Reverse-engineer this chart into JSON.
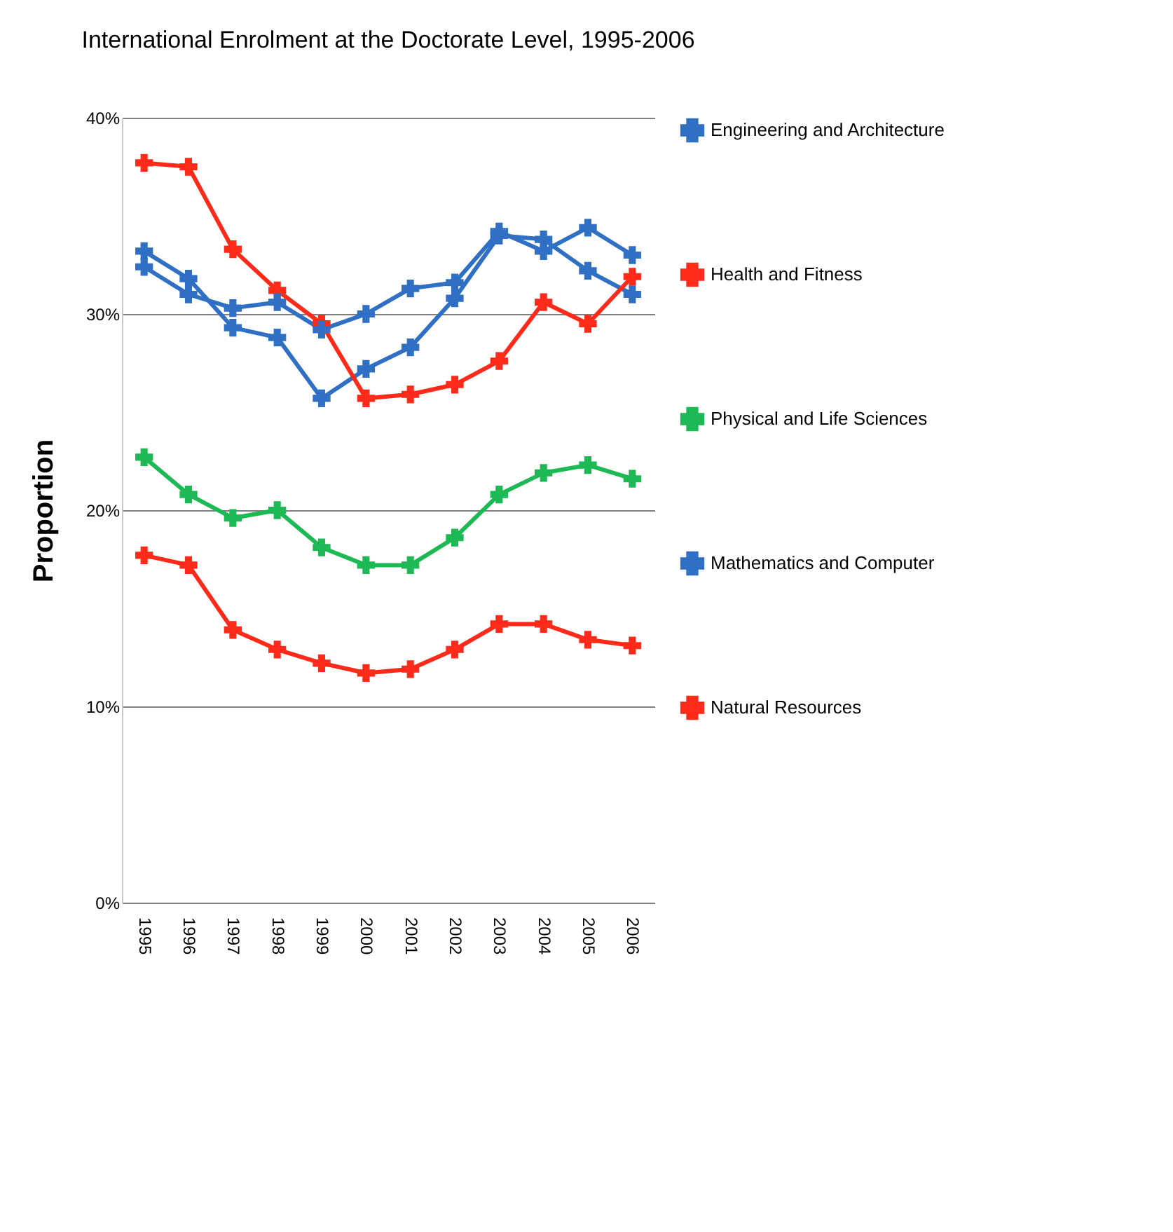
{
  "chart_data": {
    "type": "line",
    "title": "International Enrolment at the Doctorate Level, 1995-2006",
    "ylabel": "Proportion",
    "categories": [
      "1995",
      "1996",
      "1997",
      "1998",
      "1999",
      "2000",
      "2001",
      "2002",
      "2003",
      "2004",
      "2005",
      "2006"
    ],
    "series": [
      {
        "name": "Engineering and Architecture",
        "color": "#2f6fc4",
        "values": [
          33.2,
          31.8,
          29.3,
          28.8,
          25.7,
          27.2,
          28.3,
          30.8,
          34.0,
          33.8,
          32.2,
          31.0
        ]
      },
      {
        "name": "Health and Fitness",
        "color": "#ff2a1a",
        "values": [
          37.7,
          37.5,
          33.3,
          31.2,
          29.5,
          25.7,
          25.9,
          26.4,
          27.6,
          30.6,
          29.5,
          31.9
        ]
      },
      {
        "name": "Physical and Life Sciences",
        "color": "#1db954",
        "values": [
          22.7,
          20.8,
          19.6,
          20.0,
          18.1,
          17.2,
          17.2,
          18.6,
          20.8,
          21.9,
          22.3,
          21.6
        ]
      },
      {
        "name": "Mathematics and Computer",
        "color": "#2f6fc4",
        "values": [
          32.4,
          31.0,
          30.3,
          30.6,
          29.2,
          30.0,
          31.3,
          31.6,
          34.2,
          33.2,
          34.4,
          33.0
        ]
      },
      {
        "name": "Natural Resources",
        "color": "#ff2a1a",
        "values": [
          17.7,
          17.2,
          13.9,
          12.9,
          12.2,
          11.7,
          11.9,
          12.9,
          14.2,
          14.2,
          13.4,
          13.1
        ]
      }
    ],
    "ylim": [
      0,
      40
    ],
    "yticks": [
      {
        "value": 0,
        "label": "0%"
      },
      {
        "value": 10,
        "label": "10%"
      },
      {
        "value": 20,
        "label": "20%"
      },
      {
        "value": 30,
        "label": "30%"
      },
      {
        "value": 40,
        "label": "40%"
      }
    ],
    "grid": "y",
    "legend": "right",
    "marker": "cross",
    "line_style": "solid"
  }
}
